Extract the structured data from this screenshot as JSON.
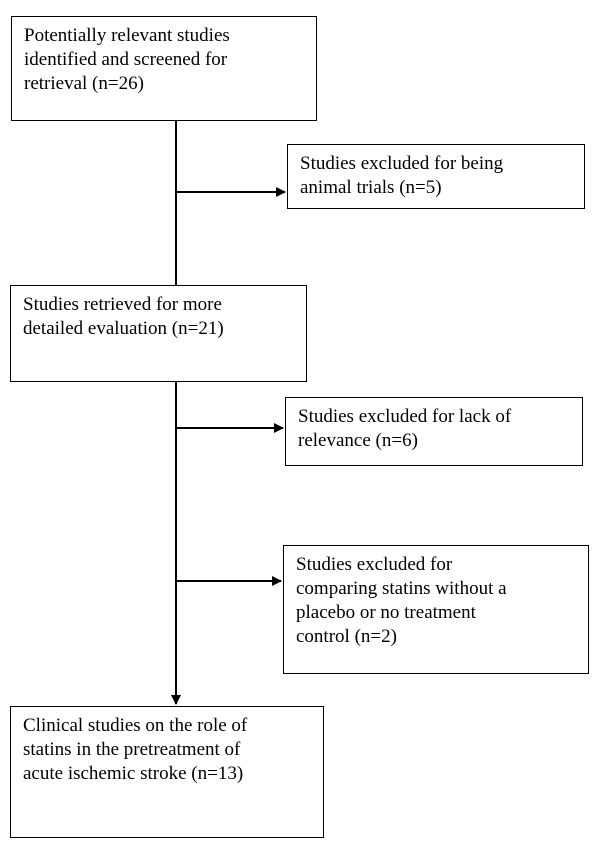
{
  "flowchart": {
    "boxes": {
      "identified": "Potentially relevant studies\nidentified and screened for\nretrieval (n=26)",
      "excluded_animal": "Studies excluded for being\nanimal trials (n=5)",
      "retrieved": "Studies retrieved for more\ndetailed evaluation (n=21)",
      "excluded_relevance": "Studies excluded for lack of\nrelevance (n=6)",
      "excluded_comparing": "Studies excluded for\ncomparing statins without a\nplacebo or no treatment\ncontrol (n=2)",
      "included": "Clinical studies on the role of\nstatins in the pretreatment of\nacute ischemic stroke (n=13)"
    },
    "line_color": "#000000"
  }
}
